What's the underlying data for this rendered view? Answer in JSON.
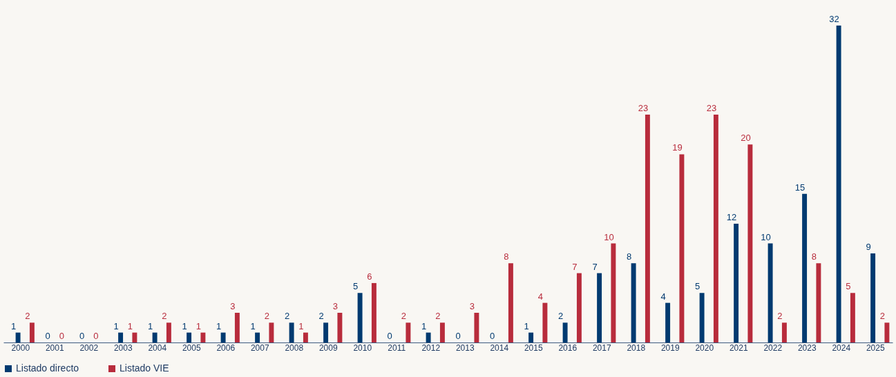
{
  "chart_data": {
    "type": "bar",
    "categories": [
      "2000",
      "2001",
      "2002",
      "2003",
      "2004",
      "2005",
      "2006",
      "2007",
      "2008",
      "2009",
      "2010",
      "2011",
      "2012",
      "2013",
      "2014",
      "2015",
      "2016",
      "2017",
      "2018",
      "2019",
      "2020",
      "2021",
      "2022",
      "2023",
      "2024",
      "2025"
    ],
    "series": [
      {
        "name": "Listado directo",
        "color": "#003a70",
        "values": [
          1,
          0,
          0,
          1,
          1,
          1,
          1,
          1,
          2,
          2,
          5,
          0,
          1,
          0,
          0,
          1,
          2,
          7,
          8,
          4,
          5,
          12,
          10,
          15,
          32,
          9
        ]
      },
      {
        "name": "Listado VIE",
        "color": "#b82c3c",
        "values": [
          2,
          0,
          0,
          1,
          2,
          1,
          3,
          2,
          1,
          3,
          6,
          2,
          2,
          3,
          8,
          4,
          7,
          10,
          23,
          19,
          23,
          20,
          2,
          8,
          5,
          2
        ]
      }
    ],
    "data_labels": true,
    "legend": "bottom"
  }
}
